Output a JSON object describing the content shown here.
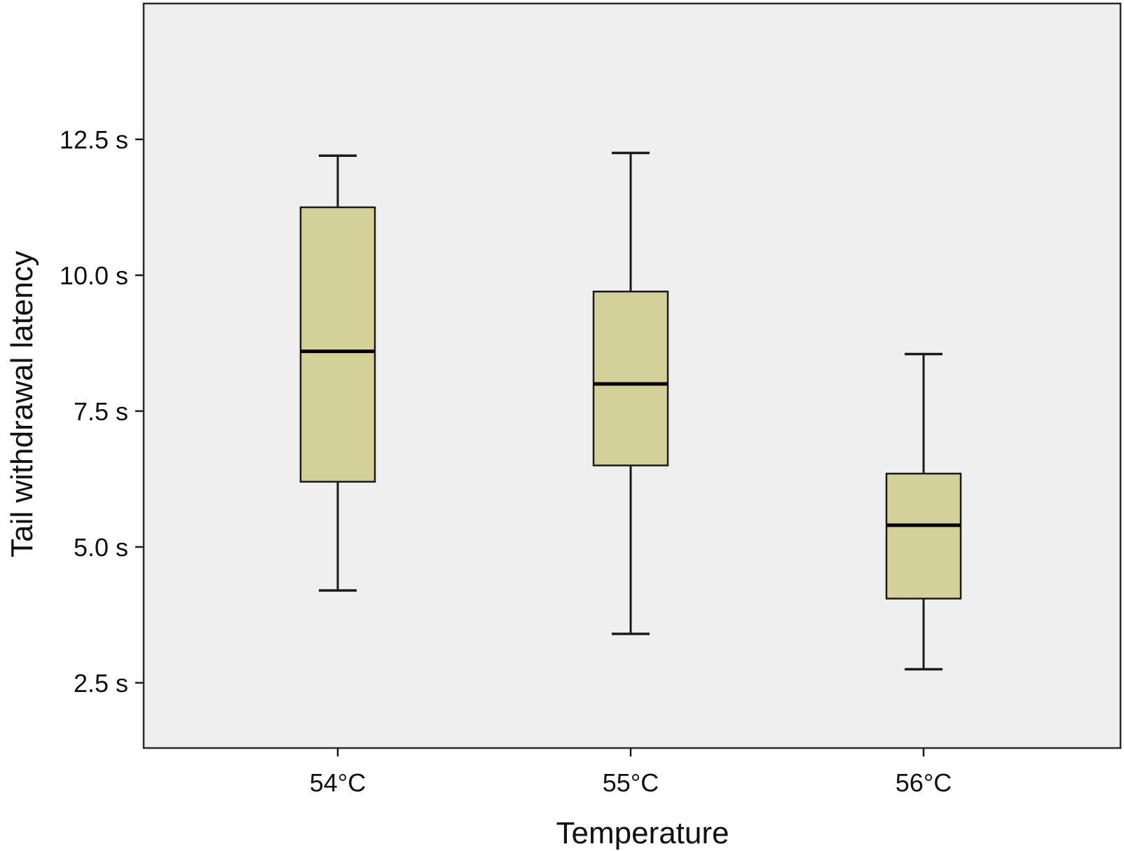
{
  "chart_data": {
    "type": "box",
    "title": "",
    "xlabel": "Temperature",
    "ylabel": "Tail withdrawal latency",
    "ylim": [
      1.3,
      15.0
    ],
    "yticks": [
      {
        "value": 2.5,
        "label": "2.5 s"
      },
      {
        "value": 5.0,
        "label": "5.0 s"
      },
      {
        "value": 7.5,
        "label": "7.5 s"
      },
      {
        "value": 10.0,
        "label": "10.0 s"
      },
      {
        "value": 12.5,
        "label": "12.5 s"
      }
    ],
    "categories": [
      "54°C",
      "55°C",
      "56°C"
    ],
    "boxes": [
      {
        "category": "54°C",
        "min": 4.2,
        "q1": 6.2,
        "median": 8.6,
        "q3": 11.25,
        "max": 12.2
      },
      {
        "category": "55°C",
        "min": 3.4,
        "q1": 6.5,
        "median": 8.0,
        "q3": 9.7,
        "max": 12.25
      },
      {
        "category": "56°C",
        "min": 2.75,
        "q1": 4.05,
        "median": 5.4,
        "q3": 6.35,
        "max": 8.55
      }
    ],
    "grid": false,
    "colors": {
      "box_fill": "#d4d09a",
      "plot_background": "#efefef",
      "line": "#1a1a1a"
    }
  }
}
